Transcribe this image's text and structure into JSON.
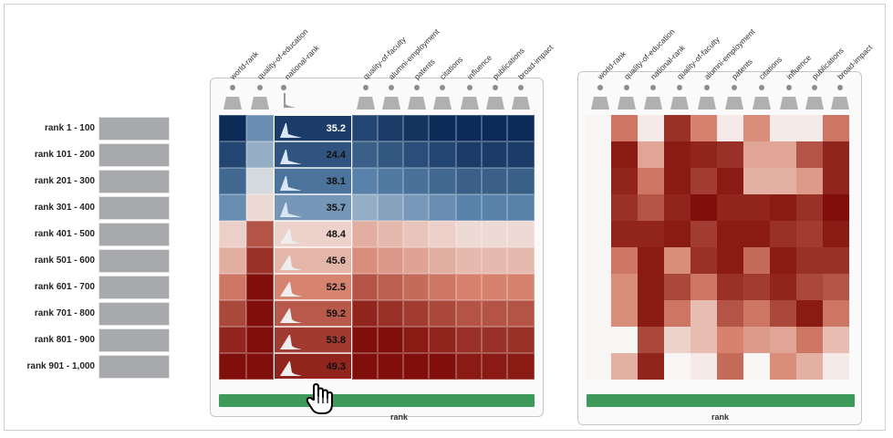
{
  "colors": {
    "accent_green": "#3d9a5a",
    "row_bar": "#a7a9ad",
    "blue_dark": "#0a2a57",
    "red_dark": "#7a0c0c"
  },
  "rows": [
    {
      "label": "rank 1 - 100"
    },
    {
      "label": "rank 101 - 200"
    },
    {
      "label": "rank 201 - 300"
    },
    {
      "label": "rank 301 - 400"
    },
    {
      "label": "rank 401 - 500"
    },
    {
      "label": "rank 501 - 600"
    },
    {
      "label": "rank 601 - 700"
    },
    {
      "label": "rank 701 - 800"
    },
    {
      "label": "rank 801 - 900"
    },
    {
      "label": "rank 901 - 1,000"
    }
  ],
  "left_panel": {
    "columns": [
      "world-rank",
      "quality-of-education",
      "national-rank",
      "quality-of-faculty",
      "alumni-employment",
      "patents",
      "citations",
      "influence",
      "publications",
      "broad-impact"
    ],
    "highlight_column": "national-rank",
    "hist_values": [
      "35.2",
      "24.4",
      "38.1",
      "35.7",
      "48.4",
      "45.6",
      "52.5",
      "59.2",
      "53.8",
      "49.3"
    ],
    "footer_label": "rank"
  },
  "right_panel": {
    "columns": [
      "world-rank",
      "quality-of-education",
      "national-rank",
      "quality-of-faculty",
      "alumni-employment",
      "patents",
      "citations",
      "influence",
      "publications",
      "broad-impact"
    ],
    "footer_label": "rank"
  },
  "icons": {
    "cursor": "hand-pointer-icon",
    "column_glyph": "distribution-glyph-icon"
  }
}
